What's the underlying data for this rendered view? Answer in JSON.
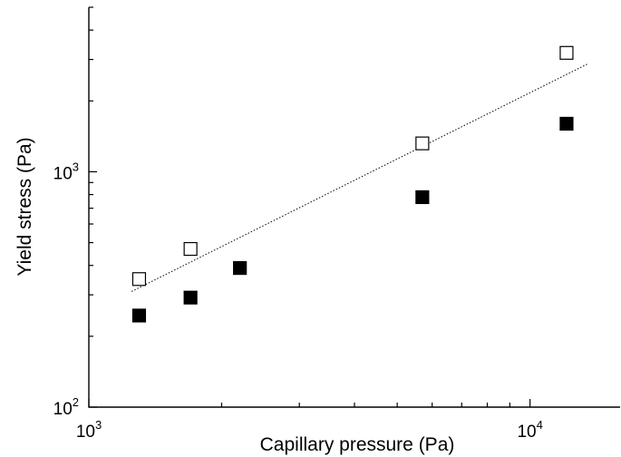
{
  "chart_data": {
    "type": "scatter",
    "xscale": "log",
    "yscale": "log",
    "xlim": [
      1000,
      16000
    ],
    "ylim": [
      100,
      5000
    ],
    "xlabel": "Capillary pressure (Pa)",
    "ylabel": "Yield stress (Pa)",
    "x_ticks": [
      {
        "value": 1000,
        "base": "10",
        "exp": "3"
      },
      {
        "value": 10000,
        "base": "10",
        "exp": "4"
      }
    ],
    "y_ticks": [
      {
        "value": 100,
        "base": "10",
        "exp": "2"
      },
      {
        "value": 1000,
        "base": "10",
        "exp": "3"
      }
    ],
    "grid": false,
    "series": [
      {
        "marker": "open-square",
        "color": "#000000",
        "points": [
          [
            1300,
            350
          ],
          [
            1700,
            470
          ],
          [
            5700,
            1320
          ],
          [
            12100,
            3200
          ]
        ]
      },
      {
        "marker": "filled-square",
        "color": "#000000",
        "points": [
          [
            1300,
            245
          ],
          [
            1700,
            292
          ],
          [
            2200,
            390
          ],
          [
            5700,
            780
          ],
          [
            12100,
            1600
          ]
        ]
      }
    ],
    "fit_line": {
      "style": "dotted",
      "color": "#000000",
      "points": [
        [
          1250,
          310
        ],
        [
          13500,
          2870
        ]
      ]
    }
  }
}
